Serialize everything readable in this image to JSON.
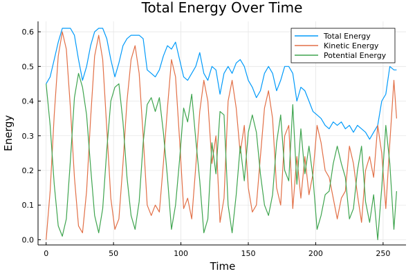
{
  "chart_data": {
    "type": "line",
    "title": "Total Energy Over Time",
    "xlabel": "Time",
    "ylabel": "Energy",
    "xlim": [
      -6,
      267
    ],
    "ylim": [
      -0.015,
      0.63
    ],
    "xticks": [
      0,
      50,
      100,
      150,
      200,
      250
    ],
    "xtick_labels": [
      "0",
      "50",
      "100",
      "150",
      "200",
      "250"
    ],
    "yticks": [
      0.0,
      0.1,
      0.2,
      0.3,
      0.4,
      0.5,
      0.6
    ],
    "ytick_labels": [
      "0.0",
      "0.1",
      "0.2",
      "0.3",
      "0.4",
      "0.5",
      "0.6"
    ],
    "grid": true,
    "legend_position": "top-right",
    "series": [
      {
        "name": "Total Energy",
        "color": "#009AFA",
        "x": [
          0,
          3,
          6,
          9,
          12,
          15,
          18,
          21,
          24,
          27,
          30,
          33,
          36,
          39,
          42,
          45,
          48,
          51,
          54,
          57,
          60,
          63,
          66,
          69,
          72,
          75,
          78,
          81,
          84,
          87,
          90,
          93,
          96,
          99,
          102,
          105,
          108,
          111,
          114,
          117,
          120,
          123,
          126,
          129,
          132,
          135,
          138,
          141,
          144,
          147,
          150,
          153,
          156,
          159,
          162,
          165,
          168,
          171,
          174,
          177,
          180,
          183,
          186,
          189,
          192,
          195,
          198,
          201,
          204,
          207,
          210,
          213,
          216,
          219,
          222,
          225,
          228,
          231,
          234,
          237,
          240,
          243,
          246,
          249,
          252,
          255,
          258,
          260
        ],
        "values": [
          0.45,
          0.47,
          0.52,
          0.57,
          0.61,
          0.61,
          0.61,
          0.59,
          0.52,
          0.46,
          0.5,
          0.56,
          0.6,
          0.61,
          0.61,
          0.58,
          0.52,
          0.47,
          0.51,
          0.56,
          0.58,
          0.59,
          0.59,
          0.59,
          0.58,
          0.49,
          0.48,
          0.47,
          0.49,
          0.53,
          0.56,
          0.55,
          0.57,
          0.52,
          0.47,
          0.46,
          0.48,
          0.5,
          0.54,
          0.48,
          0.46,
          0.5,
          0.49,
          0.42,
          0.48,
          0.5,
          0.48,
          0.51,
          0.52,
          0.5,
          0.46,
          0.44,
          0.41,
          0.43,
          0.48,
          0.5,
          0.48,
          0.43,
          0.46,
          0.5,
          0.5,
          0.48,
          0.4,
          0.44,
          0.43,
          0.4,
          0.37,
          0.36,
          0.35,
          0.33,
          0.32,
          0.34,
          0.33,
          0.34,
          0.32,
          0.33,
          0.31,
          0.33,
          0.32,
          0.31,
          0.29,
          0.31,
          0.33,
          0.4,
          0.42,
          0.5,
          0.49,
          0.49
        ]
      },
      {
        "name": "Kinetic Energy",
        "color": "#E26F46",
        "x": [
          0,
          3,
          6,
          9,
          12,
          15,
          18,
          21,
          24,
          27,
          30,
          33,
          36,
          39,
          42,
          45,
          48,
          51,
          54,
          57,
          60,
          63,
          66,
          69,
          72,
          75,
          78,
          81,
          84,
          87,
          90,
          93,
          96,
          99,
          102,
          105,
          108,
          111,
          114,
          117,
          120,
          123,
          126,
          129,
          132,
          135,
          138,
          141,
          144,
          147,
          150,
          153,
          156,
          159,
          162,
          165,
          168,
          171,
          174,
          177,
          180,
          183,
          186,
          189,
          192,
          195,
          198,
          201,
          204,
          207,
          210,
          213,
          216,
          219,
          222,
          225,
          228,
          231,
          234,
          237,
          240,
          243,
          246,
          249,
          252,
          255,
          258,
          260
        ],
        "values": [
          0.0,
          0.14,
          0.36,
          0.53,
          0.6,
          0.55,
          0.38,
          0.18,
          0.04,
          0.02,
          0.14,
          0.35,
          0.53,
          0.59,
          0.52,
          0.32,
          0.12,
          0.03,
          0.06,
          0.22,
          0.4,
          0.52,
          0.56,
          0.48,
          0.3,
          0.1,
          0.07,
          0.1,
          0.08,
          0.22,
          0.38,
          0.52,
          0.47,
          0.29,
          0.09,
          0.12,
          0.06,
          0.21,
          0.37,
          0.46,
          0.4,
          0.22,
          0.3,
          0.05,
          0.12,
          0.4,
          0.46,
          0.38,
          0.25,
          0.33,
          0.15,
          0.08,
          0.1,
          0.24,
          0.38,
          0.43,
          0.35,
          0.15,
          0.1,
          0.3,
          0.33,
          0.09,
          0.24,
          0.12,
          0.24,
          0.13,
          0.19,
          0.33,
          0.28,
          0.2,
          0.18,
          0.12,
          0.06,
          0.12,
          0.14,
          0.27,
          0.22,
          0.13,
          0.05,
          0.2,
          0.24,
          0.18,
          0.33,
          0.25,
          0.09,
          0.28,
          0.46,
          0.35
        ]
      },
      {
        "name": "Potential Energy",
        "color": "#3EA44E",
        "x": [
          0,
          3,
          6,
          9,
          12,
          15,
          18,
          21,
          24,
          27,
          30,
          33,
          36,
          39,
          42,
          45,
          48,
          51,
          54,
          57,
          60,
          63,
          66,
          69,
          72,
          75,
          78,
          81,
          84,
          87,
          90,
          93,
          96,
          99,
          102,
          105,
          108,
          111,
          114,
          117,
          120,
          123,
          126,
          129,
          132,
          135,
          138,
          141,
          144,
          147,
          150,
          153,
          156,
          159,
          162,
          165,
          168,
          171,
          174,
          177,
          180,
          183,
          186,
          189,
          192,
          195,
          198,
          201,
          204,
          207,
          210,
          213,
          216,
          219,
          222,
          225,
          228,
          231,
          234,
          237,
          240,
          243,
          246,
          249,
          252,
          255,
          258,
          260
        ],
        "values": [
          0.45,
          0.33,
          0.16,
          0.04,
          0.01,
          0.06,
          0.23,
          0.41,
          0.48,
          0.44,
          0.36,
          0.21,
          0.07,
          0.02,
          0.09,
          0.26,
          0.4,
          0.44,
          0.45,
          0.34,
          0.18,
          0.07,
          0.03,
          0.11,
          0.28,
          0.39,
          0.41,
          0.37,
          0.41,
          0.31,
          0.18,
          0.03,
          0.1,
          0.23,
          0.38,
          0.34,
          0.42,
          0.29,
          0.17,
          0.02,
          0.06,
          0.28,
          0.19,
          0.37,
          0.36,
          0.1,
          0.02,
          0.13,
          0.27,
          0.17,
          0.31,
          0.36,
          0.31,
          0.19,
          0.1,
          0.07,
          0.13,
          0.28,
          0.36,
          0.2,
          0.17,
          0.39,
          0.16,
          0.32,
          0.19,
          0.27,
          0.18,
          0.03,
          0.07,
          0.13,
          0.14,
          0.22,
          0.27,
          0.22,
          0.18,
          0.06,
          0.09,
          0.2,
          0.27,
          0.11,
          0.05,
          0.13,
          0.0,
          0.15,
          0.33,
          0.22,
          0.03,
          0.14
        ]
      }
    ]
  }
}
